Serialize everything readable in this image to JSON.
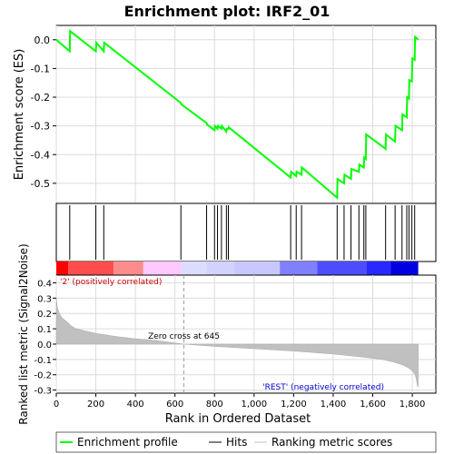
{
  "chart_data": {
    "title": "Enrichment plot: IRF2_01",
    "type": "line",
    "x_range": [
      0,
      1919
    ],
    "top_panel": {
      "ylabel": "Enrichment score (ES)",
      "ylim": [
        -0.57,
        0.05
      ],
      "yticks": [
        0.0,
        -0.1,
        -0.2,
        -0.3,
        -0.4,
        -0.5
      ],
      "ytick_labels": [
        "0.0",
        "-0.1",
        "-0.2",
        "-0.3",
        "-0.4",
        "-0.5"
      ],
      "series": [
        {
          "name": "Enrichment profile",
          "color": "#00ff00",
          "x": [
            0,
            68,
            70,
            200,
            202,
            240,
            242,
            630,
            632,
            760,
            762,
            800,
            802,
            815,
            817,
            835,
            837,
            860,
            862,
            870,
            872,
            1185,
            1187,
            1213,
            1215,
            1240,
            1242,
            1420,
            1422,
            1455,
            1457,
            1490,
            1492,
            1530,
            1532,
            1555,
            1557,
            1565,
            1567,
            1665,
            1667,
            1713,
            1715,
            1748,
            1750,
            1772,
            1774,
            1783,
            1785,
            1798,
            1800,
            1812,
            1814,
            1830
          ],
          "y": [
            0.0,
            -0.04,
            0.03,
            -0.04,
            -0.01,
            -0.04,
            -0.01,
            -0.22,
            -0.225,
            -0.29,
            -0.295,
            -0.315,
            -0.3,
            -0.31,
            -0.3,
            -0.31,
            -0.3,
            -0.32,
            -0.31,
            -0.31,
            -0.305,
            -0.48,
            -0.46,
            -0.475,
            -0.46,
            -0.47,
            -0.445,
            -0.55,
            -0.485,
            -0.5,
            -0.47,
            -0.485,
            -0.45,
            -0.46,
            -0.435,
            -0.445,
            -0.41,
            -0.415,
            -0.33,
            -0.38,
            -0.33,
            -0.355,
            -0.3,
            -0.315,
            -0.26,
            -0.27,
            -0.2,
            -0.205,
            -0.14,
            -0.145,
            -0.065,
            -0.07,
            0.01,
            0.0
          ]
        }
      ]
    },
    "hits": {
      "name": "Hits",
      "color": "#000000",
      "positions": [
        68,
        200,
        240,
        630,
        760,
        800,
        815,
        835,
        860,
        870,
        1185,
        1213,
        1240,
        1420,
        1455,
        1490,
        1530,
        1555,
        1565,
        1665,
        1713,
        1748,
        1772,
        1783,
        1798,
        1812
      ]
    },
    "rank_bar": {
      "colors": [
        "#ff0000",
        "#ff4d4d",
        "#ff8c8c",
        "#ffc8ff",
        "#dcdcff",
        "#d2d2ff",
        "#c8c8ff",
        "#8080ff",
        "#4d4dff",
        "#2828ff",
        "#0000e0",
        "#0000ff"
      ],
      "edges": [
        0,
        60,
        290,
        440,
        630,
        760,
        900,
        1130,
        1320,
        1570,
        1690,
        1830
      ]
    },
    "bottom_panel": {
      "ylabel": "Ranked list metric (Signal2Noise)",
      "xlabel": "Rank in Ordered Dataset",
      "ylim": [
        -0.32,
        0.45
      ],
      "yticks": [
        0.4,
        0.3,
        0.2,
        0.1,
        0.0,
        -0.1,
        -0.2,
        -0.3
      ],
      "ytick_labels": [
        "0.4",
        "0.3",
        "0.2",
        "0.1",
        "0.0",
        "-0.1",
        "-0.2",
        "-0.3"
      ],
      "xticks": [
        0,
        200,
        400,
        600,
        800,
        1000,
        1200,
        1400,
        1600,
        1800
      ],
      "xtick_labels": [
        "0",
        "200",
        "400",
        "600",
        "800",
        "1,000",
        "1,200",
        "1,400",
        "1,600",
        "1,800"
      ],
      "metric_x": [
        0,
        5,
        15,
        30,
        50,
        75,
        100,
        150,
        200,
        300,
        400,
        500,
        645,
        800,
        1000,
        1200,
        1400,
        1550,
        1650,
        1700,
        1750,
        1780,
        1800,
        1815,
        1822,
        1826,
        1830
      ],
      "metric_y": [
        0.3,
        0.24,
        0.2,
        0.17,
        0.15,
        0.12,
        0.1,
        0.085,
        0.07,
        0.05,
        0.035,
        0.025,
        0.0,
        -0.015,
        -0.03,
        -0.045,
        -0.065,
        -0.085,
        -0.1,
        -0.115,
        -0.135,
        -0.155,
        -0.175,
        -0.2,
        -0.24,
        -0.27,
        -0.28
      ],
      "zero_cross_label": "Zero cross at 645",
      "zero_cross_x": 645,
      "pos_label": "'2' (positively correlated)",
      "neg_label": "'REST' (negatively correlated)"
    },
    "legend": [
      {
        "label": "Enrichment profile",
        "color": "#00ff00"
      },
      {
        "label": "Hits",
        "color": "#000000"
      },
      {
        "label": "Ranking metric scores",
        "color": "#c0c0c0"
      }
    ]
  }
}
